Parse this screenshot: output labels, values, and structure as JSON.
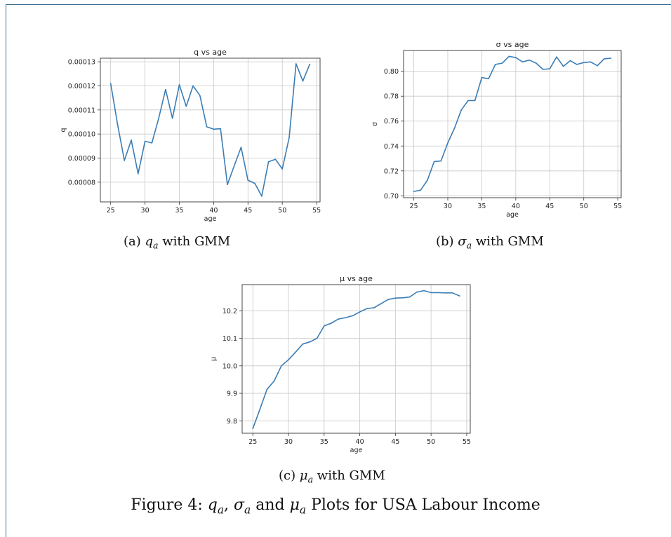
{
  "chart_data": [
    {
      "type": "line",
      "title": "q vs age",
      "xlabel": "age",
      "ylabel": "q",
      "xlim": [
        23.5,
        55.5
      ],
      "ylim": [
        7.18e-05,
        0.0001315
      ],
      "xticks": [
        25,
        30,
        35,
        40,
        45,
        50,
        55
      ],
      "yticks": [
        8e-05,
        9e-05,
        0.0001,
        0.00011,
        0.00012,
        0.00013
      ],
      "ytick_labels": [
        "0.00008",
        "0.00009",
        "0.00010",
        "0.00011",
        "0.00012",
        "0.00013"
      ],
      "grid": true,
      "color": "#3b7db5",
      "x": [
        25,
        26,
        27,
        28,
        29,
        30,
        31,
        32,
        33,
        34,
        35,
        36,
        37,
        38,
        39,
        40,
        41,
        42,
        43,
        44,
        45,
        46,
        47,
        48,
        49,
        50,
        51,
        52,
        53,
        54
      ],
      "values": [
        0.000121,
        0.000104,
        8.9e-05,
        9.75e-05,
        8.35e-05,
        9.7e-05,
        9.63e-05,
        0.0001065,
        0.0001185,
        0.0001065,
        0.0001205,
        0.0001115,
        0.00012,
        0.000116,
        0.000103,
        0.000102,
        0.0001022,
        7.9e-05,
        8.68e-05,
        9.45e-05,
        8.08e-05,
        7.95e-05,
        7.42e-05,
        8.85e-05,
        8.95e-05,
        8.55e-05,
        9.85e-05,
        0.0001292,
        0.000122,
        0.000129
      ],
      "caption": {
        "prefix": "(a) ",
        "symbol": "q",
        "sub": "a",
        "suffix": " with GMM"
      }
    },
    {
      "type": "line",
      "title": "σ vs age",
      "xlabel": "age",
      "ylabel": "σ",
      "xlim": [
        23.5,
        55.5
      ],
      "ylim": [
        0.6985,
        0.8167
      ],
      "xticks": [
        25,
        30,
        35,
        40,
        45,
        50,
        55
      ],
      "yticks": [
        0.7,
        0.72,
        0.74,
        0.76,
        0.78,
        0.8
      ],
      "ytick_labels": [
        "0.70",
        "0.72",
        "0.74",
        "0.76",
        "0.78",
        "0.80"
      ],
      "grid": true,
      "color": "#3b7db5",
      "x": [
        25,
        26,
        27,
        28,
        29,
        30,
        31,
        32,
        33,
        34,
        35,
        36,
        37,
        38,
        39,
        40,
        41,
        42,
        43,
        44,
        45,
        46,
        47,
        48,
        49,
        50,
        51,
        52,
        53,
        54
      ],
      "values": [
        0.7035,
        0.7045,
        0.7125,
        0.7275,
        0.728,
        0.7425,
        0.7545,
        0.769,
        0.7765,
        0.7765,
        0.795,
        0.794,
        0.8055,
        0.8065,
        0.812,
        0.811,
        0.8075,
        0.809,
        0.8065,
        0.8015,
        0.802,
        0.8115,
        0.804,
        0.8085,
        0.8055,
        0.807,
        0.8075,
        0.8045,
        0.81,
        0.8105
      ],
      "caption": {
        "prefix": "(b) ",
        "symbol": "σ",
        "sub": "a",
        "suffix": " with GMM"
      }
    },
    {
      "type": "line",
      "title": "μ vs age",
      "xlabel": "age",
      "ylabel": "μ",
      "xlim": [
        23.5,
        55.5
      ],
      "ylim": [
        9.755,
        10.295
      ],
      "xticks": [
        25,
        30,
        35,
        40,
        45,
        50,
        55
      ],
      "yticks": [
        9.8,
        9.9,
        10.0,
        10.1,
        10.2
      ],
      "ytick_labels": [
        "9.8",
        "9.9",
        "10.0",
        "10.1",
        "10.2"
      ],
      "grid": true,
      "color": "#3b7db5",
      "x": [
        25,
        26,
        27,
        28,
        29,
        30,
        31,
        32,
        33,
        34,
        35,
        36,
        37,
        38,
        39,
        40,
        41,
        42,
        43,
        44,
        45,
        46,
        47,
        48,
        49,
        50,
        51,
        52,
        53,
        54
      ],
      "values": [
        9.772,
        9.843,
        9.915,
        9.945,
        10.0,
        10.022,
        10.05,
        10.079,
        10.087,
        10.1,
        10.145,
        10.155,
        10.17,
        10.175,
        10.182,
        10.196,
        10.208,
        10.211,
        10.226,
        10.241,
        10.246,
        10.247,
        10.25,
        10.268,
        10.273,
        10.266,
        10.266,
        10.265,
        10.265,
        10.254
      ],
      "caption": {
        "prefix": "(c) ",
        "symbol": "μ",
        "sub": "a",
        "suffix": " with GMM"
      }
    }
  ],
  "figure_caption": {
    "label": "Figure 4: ",
    "q": "q",
    "sigma": "σ",
    "mu": "μ",
    "sub": "a",
    "sep1": ", ",
    "sep2": " and ",
    "suffix": " Plots for USA Labour Income"
  }
}
